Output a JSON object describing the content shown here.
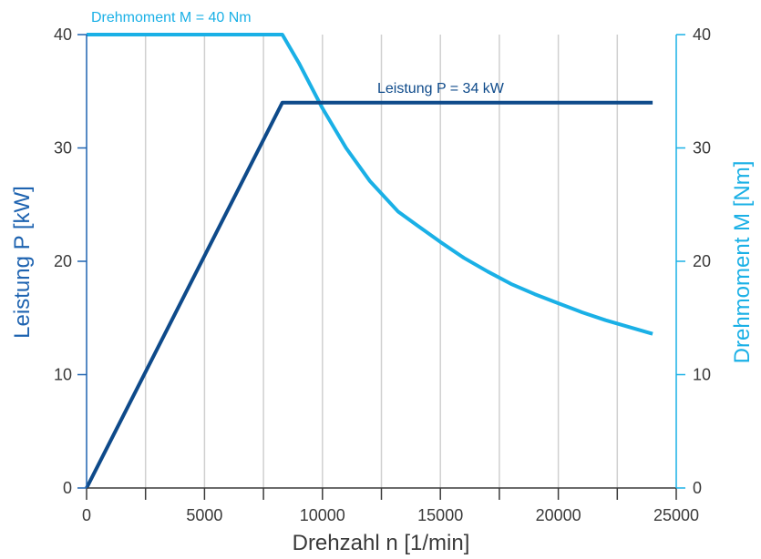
{
  "chart_data": {
    "type": "line",
    "xlabel": "Drehzahl n [1/min]",
    "ylabel_left": "Leistung P [kW]",
    "ylabel_right": "Drehmoment M [Nm]",
    "xlim": [
      0,
      25000
    ],
    "ylim_left": [
      0,
      40
    ],
    "ylim_right": [
      0,
      40
    ],
    "x_ticks": [
      "0",
      "5000",
      "10000",
      "15000",
      "20000",
      "25000"
    ],
    "y_left_ticks": [
      "0",
      "10",
      "20",
      "30",
      "40"
    ],
    "y_right_ticks": [
      "0",
      "10",
      "20",
      "30",
      "40"
    ],
    "grid": true,
    "colors": {
      "power": "#0e4a8a",
      "torque": "#1ab0e6",
      "left_axis": "#1e63b0",
      "right_axis": "#1ab0e6",
      "grid": "#d0d0d0"
    },
    "annotations": {
      "torque": "Drehmoment M = 40 Nm",
      "power": "Leistung P = 34 kW"
    },
    "series": [
      {
        "axis": "left",
        "points": [
          [
            0,
            0
          ],
          [
            8300,
            34
          ],
          [
            24000,
            34
          ]
        ]
      },
      {
        "axis": "right",
        "points": [
          [
            0,
            40
          ],
          [
            8300,
            40
          ],
          [
            9000,
            37.5
          ],
          [
            10000,
            33.5
          ],
          [
            11000,
            30.0
          ],
          [
            12000,
            27.1
          ],
          [
            13200,
            24.4
          ],
          [
            14000,
            23.2
          ],
          [
            15000,
            21.7
          ],
          [
            16000,
            20.3
          ],
          [
            17000,
            19.1
          ],
          [
            18000,
            18.0
          ],
          [
            19000,
            17.1
          ],
          [
            20000,
            16.3
          ],
          [
            21000,
            15.5
          ],
          [
            22000,
            14.8
          ],
          [
            23000,
            14.2
          ],
          [
            24000,
            13.6
          ]
        ]
      }
    ]
  }
}
